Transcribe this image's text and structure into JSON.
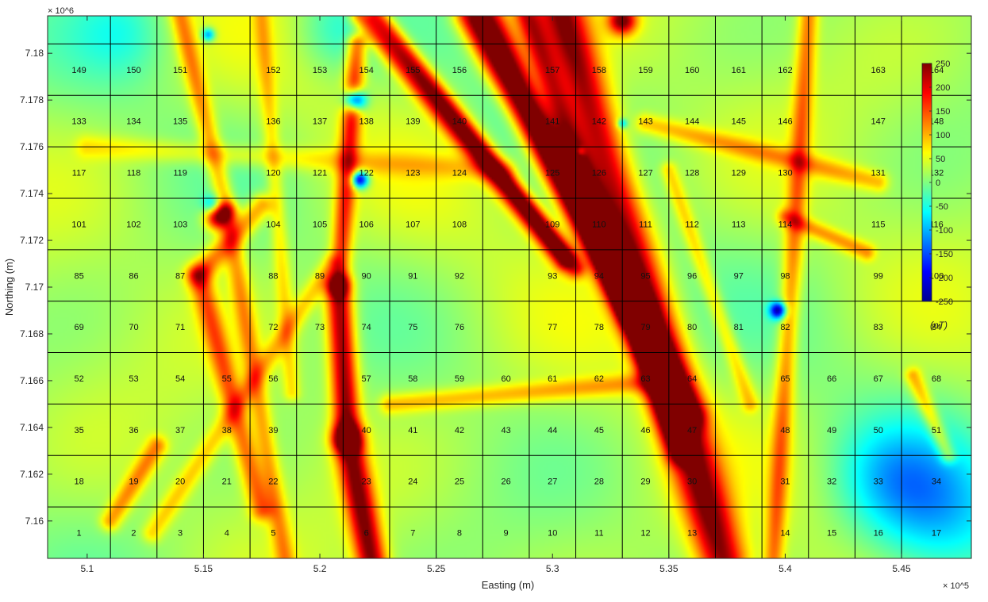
{
  "chart_data": {
    "type": "heatmap",
    "title": "",
    "xlabel": "Easting (m)",
    "ylabel": "Northing (m)",
    "x_exponent_label": "× 10^5",
    "y_exponent_label": "× 10^6",
    "xlim": [
      508300,
      548000
    ],
    "ylim": [
      7158400,
      7181600
    ],
    "x_ticks": [
      {
        "value": 510000,
        "label": "5.1"
      },
      {
        "value": 515000,
        "label": "5.15"
      },
      {
        "value": 520000,
        "label": "5.2"
      },
      {
        "value": 525000,
        "label": "5.25"
      },
      {
        "value": 530000,
        "label": "5.3"
      },
      {
        "value": 535000,
        "label": "5.35"
      },
      {
        "value": 540000,
        "label": "5.4"
      },
      {
        "value": 545000,
        "label": "5.45"
      }
    ],
    "y_ticks": [
      {
        "value": 7160000,
        "label": "7.16"
      },
      {
        "value": 7162000,
        "label": "7.162"
      },
      {
        "value": 7164000,
        "label": "7.164"
      },
      {
        "value": 7166000,
        "label": "7.166"
      },
      {
        "value": 7168000,
        "label": "7.168"
      },
      {
        "value": 7170000,
        "label": "7.17"
      },
      {
        "value": 7172000,
        "label": "7.172"
      },
      {
        "value": 7174000,
        "label": "7.174"
      },
      {
        "value": 7176000,
        "label": "7.176"
      },
      {
        "value": 7178000,
        "label": "7.178"
      },
      {
        "value": 7180000,
        "label": "7.18"
      }
    ],
    "colorbar": {
      "min": -250,
      "max": 250,
      "ticks": [
        250,
        200,
        150,
        100,
        50,
        0,
        -50,
        -100,
        -150,
        -200,
        -250
      ],
      "unit_label": "(nT)",
      "colormap": "jet"
    },
    "grid": {
      "columns_east": [
        508300,
        511000,
        513000,
        515000,
        517000,
        519000,
        521000,
        523000,
        525000,
        527000,
        529000,
        531000,
        533000,
        535000,
        537000,
        539000,
        541000,
        543000,
        545000,
        548000
      ],
      "rows_north": [
        7158400,
        7160600,
        7162800,
        7165000,
        7167200,
        7169400,
        7171600,
        7173800,
        7176000,
        7178200,
        7180400,
        7181600
      ],
      "tile_numbers_row_major_from_south": [
        [
          1,
          2,
          3,
          4,
          5,
          6,
          7,
          8,
          9,
          10,
          11,
          12,
          13,
          14,
          15,
          16,
          17
        ],
        [
          18,
          19,
          20,
          21,
          22,
          23,
          24,
          25,
          26,
          27,
          28,
          29,
          30,
          31,
          32,
          33,
          34
        ],
        [
          35,
          36,
          37,
          38,
          39,
          40,
          41,
          42,
          43,
          44,
          45,
          46,
          47,
          48,
          49,
          50,
          51
        ],
        [
          52,
          53,
          54,
          55,
          56,
          57,
          58,
          59,
          60,
          61,
          62,
          63,
          64,
          65,
          66,
          67,
          68
        ],
        [
          69,
          70,
          71,
          72,
          73,
          74,
          75,
          76,
          77,
          78,
          79,
          80,
          81,
          82,
          83,
          84
        ],
        [
          85,
          86,
          87,
          88,
          89,
          90,
          91,
          92,
          93,
          94,
          95,
          96,
          97,
          98,
          99,
          100
        ],
        [
          101,
          102,
          103,
          104,
          105,
          106,
          107,
          108,
          109,
          110,
          111,
          112,
          113,
          114,
          115,
          116
        ],
        [
          117,
          118,
          119,
          120,
          121,
          122,
          123,
          124,
          125,
          126,
          127,
          128,
          129,
          130,
          131,
          132
        ],
        [
          133,
          134,
          135,
          136,
          137,
          138,
          139,
          140,
          141,
          142,
          143,
          144,
          145,
          146,
          147,
          148
        ],
        [
          149,
          150,
          151,
          152,
          153,
          154,
          155,
          156,
          157,
          158,
          159,
          160,
          161,
          162,
          163,
          164
        ]
      ]
    },
    "background_value": 20,
    "linear_anomalies": [
      {
        "from": [
          530400,
          7181600
        ],
        "to": [
          537300,
          7158400
        ],
        "value": 250,
        "width": 700
      },
      {
        "from": [
          527200,
          7181600
        ],
        "to": [
          535800,
          7164500
        ],
        "value": 240,
        "width": 500
      },
      {
        "from": [
          526400,
          7181600
        ],
        "to": [
          533500,
          7169000
        ],
        "value": 200,
        "width": 450
      },
      {
        "from": [
          528900,
          7181600
        ],
        "to": [
          535500,
          7163000
        ],
        "value": 200,
        "width": 400
      },
      {
        "from": [
          521800,
          7181600
        ],
        "to": [
          530500,
          7171200
        ],
        "value": 190,
        "width": 350
      },
      {
        "from": [
          522500,
          7181600
        ],
        "to": [
          531000,
          7170800
        ],
        "value": 160,
        "width": 300
      },
      {
        "from": [
          521600,
          7180400
        ],
        "to": [
          520800,
          7170000
        ],
        "value": 170,
        "width": 300
      },
      {
        "from": [
          520800,
          7170000
        ],
        "to": [
          521200,
          7163500
        ],
        "value": 250,
        "width": 400
      },
      {
        "from": [
          521200,
          7163500
        ],
        "to": [
          522200,
          7158400
        ],
        "value": 250,
        "width": 450
      },
      {
        "from": [
          517500,
          7173500
        ],
        "to": [
          514800,
          7170500
        ],
        "value": 130,
        "width": 350
      },
      {
        "from": [
          514800,
          7170500
        ],
        "to": [
          517500,
          7160500
        ],
        "value": 140,
        "width": 350
      },
      {
        "from": [
          514000,
          7181600
        ],
        "to": [
          516000,
          7173300
        ],
        "value": 120,
        "width": 300
      },
      {
        "from": [
          516000,
          7173300
        ],
        "to": [
          518500,
          7158400
        ],
        "value": 110,
        "width": 300
      },
      {
        "from": [
          517500,
          7181600
        ],
        "to": [
          518800,
          7165500
        ],
        "value": 80,
        "width": 250
      },
      {
        "from": [
          520500,
          7171000
        ],
        "to": [
          512800,
          7159500
        ],
        "value": 90,
        "width": 300
      },
      {
        "from": [
          541000,
          7181600
        ],
        "to": [
          539500,
          7158400
        ],
        "value": 130,
        "width": 300
      },
      {
        "from": [
          534000,
          7177000
        ],
        "to": [
          544000,
          7174500
        ],
        "value": 100,
        "width": 300
      },
      {
        "from": [
          540000,
          7173000
        ],
        "to": [
          543500,
          7171500
        ],
        "value": 110,
        "width": 250
      },
      {
        "from": [
          545500,
          7166200
        ],
        "to": [
          547000,
          7162800
        ],
        "value": 110,
        "width": 250
      },
      {
        "from": [
          523000,
          7165000
        ],
        "to": [
          535000,
          7166000
        ],
        "value": 100,
        "width": 300
      },
      {
        "from": [
          510000,
          7176000
        ],
        "to": [
          528000,
          7175000
        ],
        "value": 70,
        "width": 350
      },
      {
        "from": [
          513000,
          7163200
        ],
        "to": [
          511000,
          7160000
        ],
        "value": 120,
        "width": 300
      },
      {
        "from": [
          535000,
          7175000
        ],
        "to": [
          538500,
          7165000
        ],
        "value": 90,
        "width": 250
      }
    ],
    "point_anomalies": [
      {
        "at": [
          521500,
          7178000
        ],
        "value": -250,
        "radius": 320
      },
      {
        "at": [
          521700,
          7174600
        ],
        "value": -240,
        "radius": 260
      },
      {
        "at": [
          515600,
          7173000
        ],
        "value": 250,
        "radius": 380
      },
      {
        "at": [
          515400,
          7173500
        ],
        "value": -90,
        "radius": 300
      },
      {
        "at": [
          539700,
          7169000
        ],
        "value": -220,
        "radius": 250
      },
      {
        "at": [
          533000,
          7181400
        ],
        "value": 250,
        "radius": 420
      },
      {
        "at": [
          533000,
          7177000
        ],
        "value": -100,
        "radius": 150
      },
      {
        "at": [
          531200,
          7175800
        ],
        "value": -60,
        "radius": 140
      },
      {
        "at": [
          515200,
          7180800
        ],
        "value": -130,
        "radius": 200
      },
      {
        "at": [
          520700,
          7181000
        ],
        "value": -40,
        "radius": 1300
      },
      {
        "at": [
          511500,
          7181000
        ],
        "value": -30,
        "radius": 1400
      },
      {
        "at": [
          546500,
          7160500
        ],
        "value": -80,
        "radius": 2100
      },
      {
        "at": [
          544500,
          7162000
        ],
        "value": -40,
        "radius": 1600
      },
      {
        "at": [
          529000,
          7178000
        ],
        "value": -30,
        "radius": 1500
      }
    ]
  }
}
